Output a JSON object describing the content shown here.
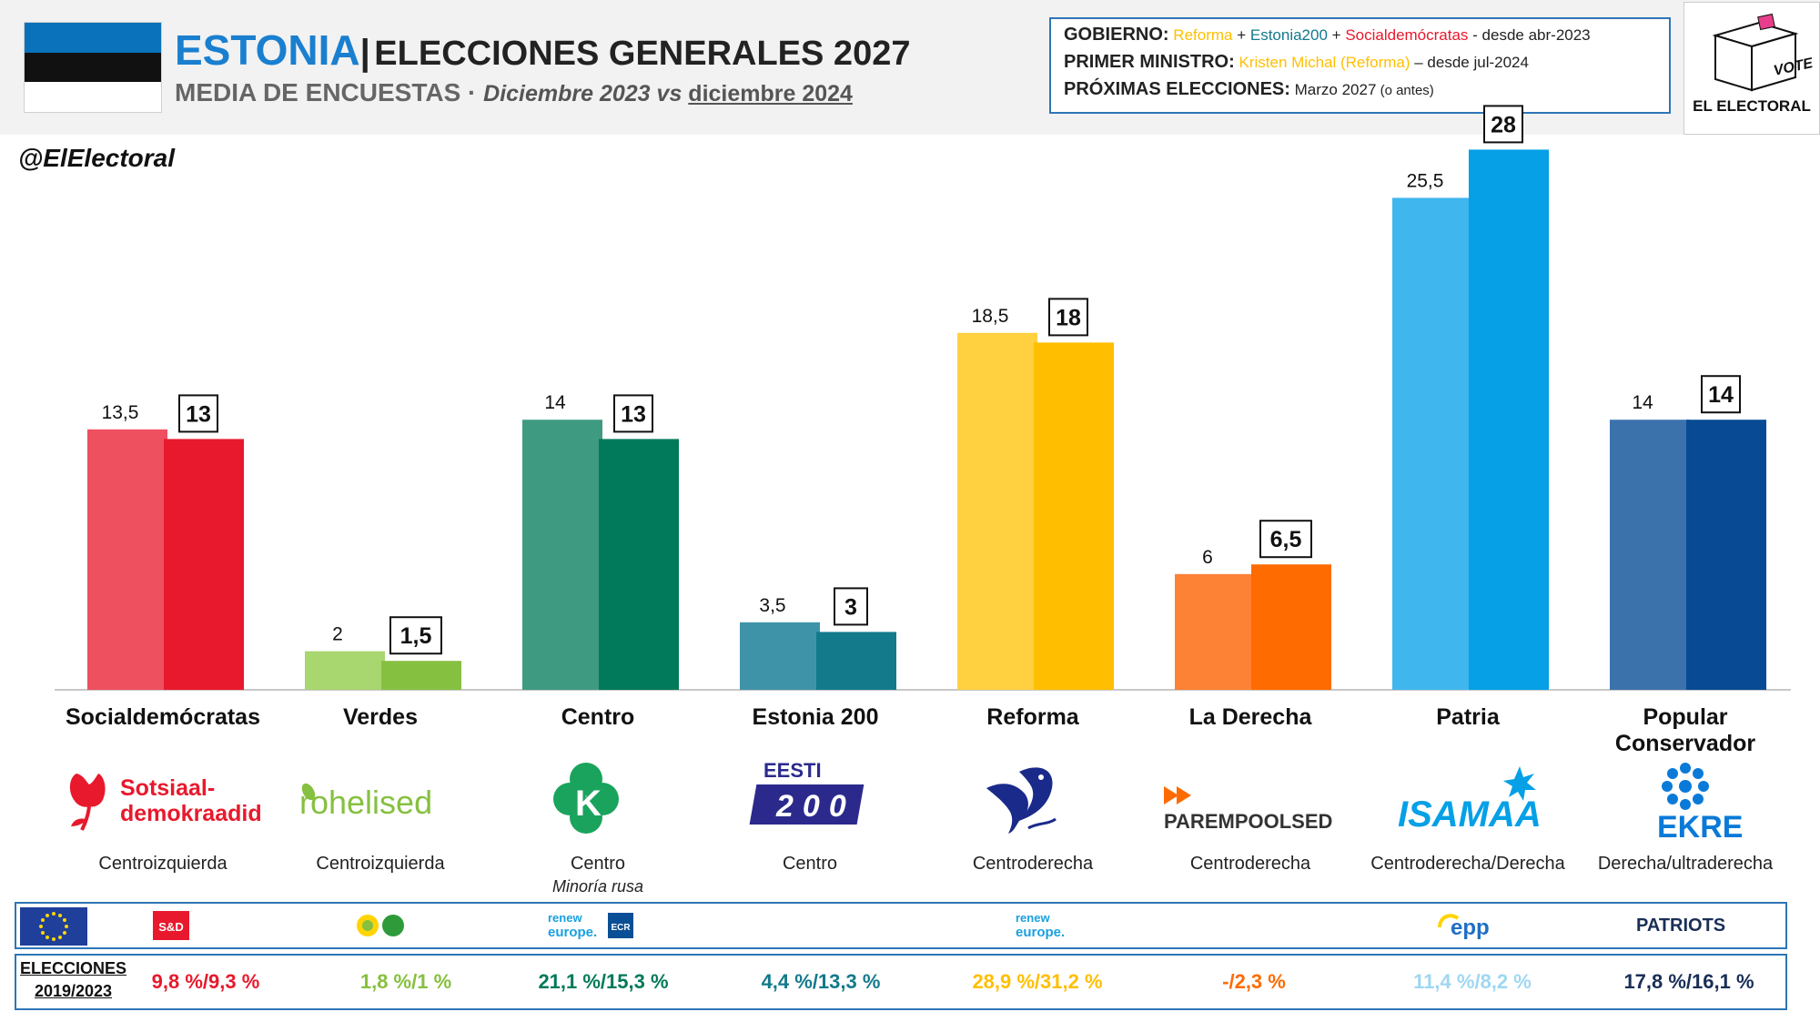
{
  "header": {
    "country": "ESTONIA",
    "separator": "|",
    "title_rest": "ELECCIONES GENERALES 2027",
    "subtitle_main": "MEDIA DE ENCUESTAS",
    "subtitle_dot": " · ",
    "subtitle_period_a": "Diciembre  2023 vs ",
    "subtitle_period_b": "diciembre 2024",
    "flag_colors": [
      "#0a72ba",
      "#111111",
      "#ffffff"
    ]
  },
  "info": {
    "gov_label": "GOBIERNO:",
    "gov_p1": "Reforma",
    "gov_plus1": " + ",
    "gov_p2": "Estonia200",
    "gov_plus2": " + ",
    "gov_p3": "Socialdemócratas",
    "gov_since": " - desde abr-2023",
    "pm_label": "PRIMER MINISTRO:",
    "pm_name": "Kristen Michal (Reforma)",
    "pm_since": " – desde jul-2024",
    "next_label": "PRÓXIMAS ELECCIONES:",
    "next_value": " Marzo 2027",
    "next_note": " (o antes)"
  },
  "brand": {
    "logo_text": "VOTE",
    "name": "EL ELECTORAL",
    "handle": "@ElElectoral"
  },
  "chart_data": {
    "type": "bar",
    "title": "MEDIA DE ENCUESTAS",
    "categories": [
      "Socialdemócratas",
      "Verdes",
      "Centro",
      "Estonia 200",
      "Reforma",
      "La Derecha",
      "Patria",
      "Popular Conservador"
    ],
    "series": [
      {
        "name": "Diciembre 2023",
        "values": [
          13.5,
          2,
          14,
          3.5,
          18.5,
          6,
          25.5,
          14
        ],
        "labels": [
          "13,5",
          "2",
          "14",
          "3,5",
          "18,5",
          "6",
          "25,5",
          "14"
        ]
      },
      {
        "name": "diciembre 2024",
        "values": [
          13,
          1.5,
          13,
          3,
          18,
          6.5,
          28,
          14
        ],
        "labels": [
          "13",
          "1,5",
          "13",
          "3",
          "18",
          "6,5",
          "28",
          "14"
        ]
      }
    ],
    "colors_2023": [
      "#ee5060",
      "#a8d66f",
      "#3f9a82",
      "#3f93a8",
      "#ffd040",
      "#fe8236",
      "#40b6ee",
      "#3c72ac"
    ],
    "colors_2024": [
      "#e8192c",
      "#86c040",
      "#007a5a",
      "#137a8c",
      "#ffbf00",
      "#fe6b00",
      "#05a0e6",
      "#084a94"
    ],
    "ylim": [
      0,
      30
    ],
    "grid": false
  },
  "parties": [
    {
      "name": "Socialdemócratas",
      "ideology": "Centroizquierda",
      "logo": "Sotsiaal-demokraadid",
      "logo_line1": "Sotsiaal-",
      "logo_line2": "demokraadid",
      "eu_group": "S&D",
      "election": "9,8 %/9,3 %",
      "election_color": "#e8192c"
    },
    {
      "name": "Verdes",
      "ideology": "Centroizquierda",
      "logo": "rohelised",
      "eu_group": "greens",
      "election": "1,8 %/1 %",
      "election_color": "#86c040"
    },
    {
      "name": "Centro",
      "ideology": "Centro",
      "note": "Minoría rusa",
      "logo": "K",
      "eu_group_1": "renew",
      "eu_group_1_l1": "renew",
      "eu_group_1_l2": "europe.",
      "eu_group_2": "ECR",
      "election": "21,1 %/15,3 %",
      "election_color": "#007a5a"
    },
    {
      "name": "Estonia 200",
      "ideology": "Centro",
      "logo_line1": "EESTI",
      "logo_line2": "200",
      "election": "4,4 %/13,3 %",
      "election_color": "#137a8c"
    },
    {
      "name": "Reforma",
      "ideology": "Centroderecha",
      "logo": "squirrel",
      "eu_group_l1": "renew",
      "eu_group_l2": "europe.",
      "election": "28,9 %/31,2 %",
      "election_color": "#ffbf00"
    },
    {
      "name": "La Derecha",
      "ideology": "Centroderecha",
      "logo": "PAREMPOOLSED",
      "election": "-/2,3 %",
      "election_color": "#fe6b00"
    },
    {
      "name": "Patria",
      "ideology": "Centroderecha/Derecha",
      "logo": "ISAMAA",
      "eu_group": "epp",
      "election": "11,4 %/8,2 %",
      "election_color": "#9fd7f2"
    },
    {
      "name": "Popular Conservador",
      "name_l1": "Popular",
      "name_l2": "Conservador",
      "ideology": "Derecha/ultraderecha",
      "logo": "EKRE",
      "eu_group": "PATRIOTS",
      "election": "17,8 %/16,1 %",
      "election_color": "#1a2e57"
    }
  ],
  "elections": {
    "label_l1": "ELECCIONES",
    "label_l2": "2019/2023"
  }
}
